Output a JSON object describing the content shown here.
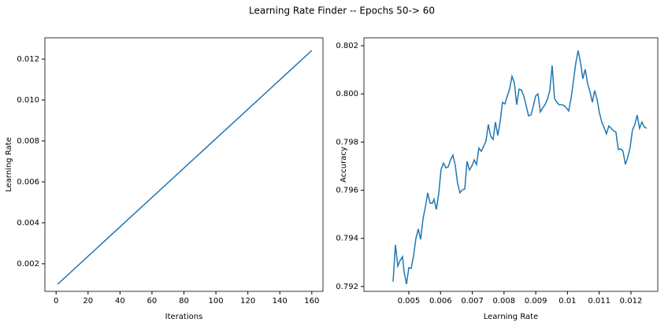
{
  "title": "Learning Rate Finder -- Epochs 50-> 60",
  "chart_data": [
    {
      "type": "line",
      "xlabel": "Iterations",
      "ylabel": "Learning Rate",
      "color": "#1f77b4",
      "grid": false,
      "x": [
        1,
        160
      ],
      "values": [
        0.001,
        0.01242
      ],
      "xlim": [
        -7,
        167
      ],
      "ylim": [
        0.00065,
        0.01304
      ],
      "xticks": [
        0,
        20,
        40,
        60,
        80,
        100,
        120,
        140,
        160
      ],
      "yticks": [
        0.002,
        0.004,
        0.006,
        0.008,
        {
          "value": 0.01,
          "label": "0.010"
        },
        0.012
      ]
    },
    {
      "type": "line",
      "xlabel": "Learning Rate",
      "ylabel": "Accuracy",
      "color": "#1f77b4",
      "grid": false,
      "x": [
        0.004504,
        0.004578,
        0.004653,
        0.004727,
        0.004801,
        0.004851,
        0.004926,
        0.005,
        0.005074,
        0.005149,
        0.005223,
        0.005298,
        0.005372,
        0.005447,
        0.005521,
        0.005596,
        0.00567,
        0.005744,
        0.005794,
        0.005868,
        0.005943,
        0.006017,
        0.006092,
        0.006166,
        0.006241,
        0.006315,
        0.00639,
        0.006464,
        0.006538,
        0.006613,
        0.006687,
        0.006762,
        0.006836,
        0.006911,
        0.006985,
        0.00706,
        0.007134,
        0.007208,
        0.007283,
        0.007357,
        0.007432,
        0.007506,
        0.007581,
        0.007655,
        0.00773,
        0.007804,
        0.007878,
        0.007953,
        0.008027,
        0.008102,
        0.008176,
        0.008251,
        0.008325,
        0.0084,
        0.008474,
        0.008548,
        0.008623,
        0.008697,
        0.008772,
        0.008846,
        0.008921,
        0.008995,
        0.00907,
        0.009144,
        0.009218,
        0.009293,
        0.009367,
        0.009442,
        0.009516,
        0.009591,
        0.009665,
        0.009739,
        0.009814,
        0.009888,
        0.009963,
        0.010037,
        0.010112,
        0.010186,
        0.010261,
        0.010335,
        0.010409,
        0.010484,
        0.010558,
        0.010633,
        0.010707,
        0.010782,
        0.010856,
        0.010931,
        0.011005,
        0.011079,
        0.011154,
        0.011228,
        0.011303,
        0.011377,
        0.011452,
        0.011526,
        0.0116,
        0.011675,
        0.011749,
        0.011824,
        0.011898,
        0.011973,
        0.012047,
        0.012122,
        0.012196,
        0.01227,
        0.012345,
        0.012419,
        0.012494
      ],
      "values": [
        0.7922,
        0.79373,
        0.79285,
        0.79308,
        0.79324,
        0.79262,
        0.7921,
        0.79278,
        0.79275,
        0.79327,
        0.79399,
        0.79439,
        0.79396,
        0.79481,
        0.7953,
        0.79589,
        0.79546,
        0.79546,
        0.79563,
        0.7952,
        0.79586,
        0.79687,
        0.79713,
        0.79693,
        0.79697,
        0.79726,
        0.79746,
        0.79703,
        0.79628,
        0.79589,
        0.79602,
        0.79605,
        0.7972,
        0.79684,
        0.797,
        0.79726,
        0.79707,
        0.79775,
        0.79762,
        0.79782,
        0.79805,
        0.79873,
        0.79824,
        0.79811,
        0.79883,
        0.79827,
        0.79886,
        0.79965,
        0.79958,
        0.79991,
        0.8002,
        0.80073,
        0.80046,
        0.79955,
        0.8002,
        0.80016,
        0.79991,
        0.79952,
        0.79909,
        0.79912,
        0.79948,
        0.79991,
        0.8,
        0.79925,
        0.79942,
        0.79955,
        0.79978,
        0.80014,
        0.80118,
        0.79981,
        0.79965,
        0.79955,
        0.79955,
        0.79952,
        0.79942,
        0.79929,
        0.79981,
        0.80053,
        0.80128,
        0.8018,
        0.80131,
        0.80063,
        0.80102,
        0.80043,
        0.8001,
        0.79965,
        0.80014,
        0.79978,
        0.79922,
        0.79883,
        0.7986,
        0.79834,
        0.79867,
        0.79857,
        0.79847,
        0.79841,
        0.79769,
        0.79772,
        0.79762,
        0.79707,
        0.79736,
        0.79778,
        0.7985,
        0.79873,
        0.79912,
        0.79857,
        0.79883,
        0.79863,
        0.79857
      ],
      "xlim": [
        0.003586,
        0.012844
      ],
      "ylim": [
        0.7918,
        0.80233
      ],
      "xticks": [
        0.005,
        0.006,
        0.007,
        0.008,
        0.009,
        0.01,
        0.011,
        0.012
      ],
      "yticks": [
        0.792,
        0.794,
        0.796,
        0.798,
        {
          "value": 0.8,
          "label": "0.800"
        },
        0.802
      ]
    }
  ]
}
